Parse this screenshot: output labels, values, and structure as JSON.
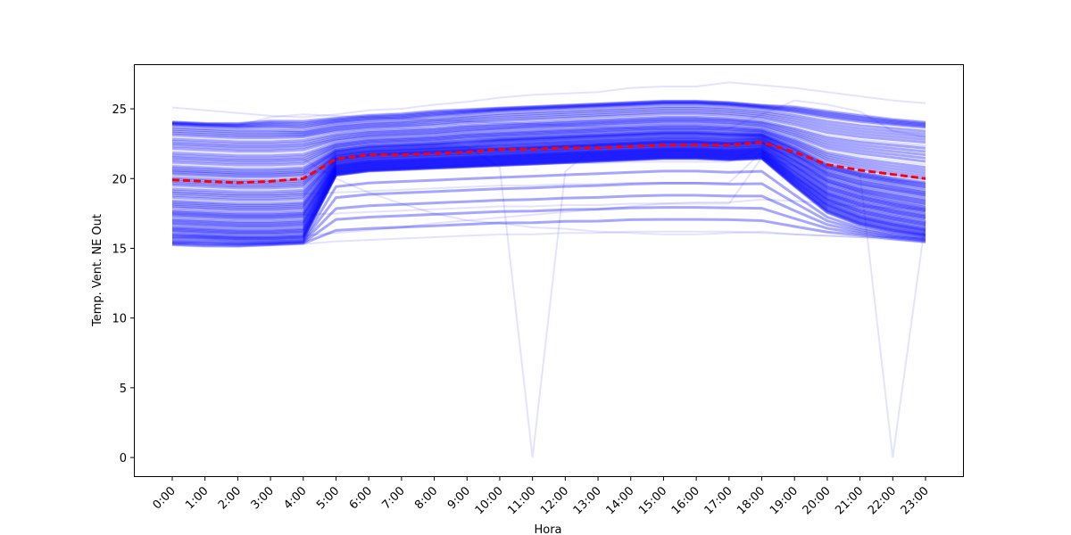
{
  "chart_data": {
    "type": "line",
    "title": "",
    "xlabel": "Hora",
    "ylabel": "Temp. Vent. NE Out",
    "categories": [
      "0:00",
      "1:00",
      "2:00",
      "3:00",
      "4:00",
      "5:00",
      "6:00",
      "7:00",
      "8:00",
      "9:00",
      "10:00",
      "11:00",
      "12:00",
      "13:00",
      "14:00",
      "15:00",
      "16:00",
      "17:00",
      "18:00",
      "19:00",
      "20:00",
      "21:00",
      "22:00",
      "23:00"
    ],
    "ylim": [
      -1.4,
      28.2
    ],
    "yticks": [
      0,
      5,
      10,
      15,
      20,
      25
    ],
    "grid": false,
    "legend": "none",
    "colors": {
      "daily_lines": "#0000ff",
      "mean_line": "#ff0000"
    },
    "daily_line_alpha": 0.1,
    "mean_series": {
      "style": "dashed",
      "values": [
        19.9,
        19.8,
        19.7,
        19.8,
        20.0,
        21.4,
        21.7,
        21.7,
        21.8,
        21.9,
        22.1,
        22.1,
        22.2,
        22.2,
        22.3,
        22.4,
        22.4,
        22.4,
        22.6,
        21.9,
        21.0,
        20.6,
        20.3,
        20.0
      ]
    },
    "daily_series": [
      {
        "values": [
          25.1,
          24.9,
          24.7,
          24.5,
          24.4,
          24.6,
          24.9,
          25.0,
          25.3,
          25.5,
          25.8,
          26.0,
          26.1,
          26.2,
          26.5,
          26.6,
          26.6,
          26.9,
          26.7,
          26.5,
          26.2,
          25.9,
          25.6,
          25.4
        ]
      },
      {
        "values": [
          24.1,
          24.0,
          24.0,
          24.2,
          24.2,
          24.4,
          24.6,
          24.7,
          24.9,
          25.0,
          25.1,
          25.2,
          25.3,
          25.4,
          25.5,
          25.6,
          25.6,
          25.5,
          25.3,
          25.2,
          24.9,
          24.6,
          24.3,
          24.1
        ]
      },
      {
        "values": [
          23.8,
          23.7,
          23.6,
          23.6,
          23.5,
          23.9,
          24.1,
          24.2,
          24.4,
          24.6,
          24.8,
          24.9,
          25.0,
          25.1,
          25.2,
          25.3,
          25.3,
          25.2,
          25.0,
          24.7,
          24.3,
          24.0,
          23.8,
          23.6
        ]
      },
      {
        "values": [
          23.0,
          22.9,
          22.8,
          22.8,
          22.9,
          23.3,
          23.5,
          23.6,
          23.7,
          23.9,
          24.0,
          24.1,
          24.2,
          24.3,
          24.4,
          24.5,
          24.5,
          24.4,
          24.2,
          23.7,
          23.1,
          22.8,
          22.6,
          22.4
        ]
      },
      {
        "values": [
          22.0,
          21.9,
          21.8,
          21.8,
          21.9,
          22.6,
          22.9,
          23.0,
          23.1,
          23.3,
          23.4,
          23.5,
          23.6,
          23.7,
          23.8,
          23.9,
          23.9,
          23.8,
          23.6,
          22.9,
          22.0,
          21.6,
          21.3,
          21.0
        ]
      },
      {
        "values": [
          21.0,
          20.9,
          20.8,
          20.8,
          20.9,
          22.1,
          22.4,
          22.5,
          22.6,
          22.8,
          22.9,
          23.0,
          23.1,
          23.2,
          23.3,
          23.4,
          23.4,
          23.3,
          23.2,
          22.3,
          21.1,
          20.5,
          20.1,
          19.8
        ]
      },
      {
        "values": [
          20.2,
          20.1,
          20.0,
          20.0,
          20.1,
          21.8,
          22.1,
          22.2,
          22.3,
          22.4,
          22.6,
          22.7,
          22.8,
          22.9,
          23.0,
          23.1,
          23.1,
          23.0,
          23.0,
          21.9,
          20.6,
          20.0,
          19.6,
          19.2
        ]
      },
      {
        "values": [
          19.4,
          19.3,
          19.2,
          19.2,
          19.3,
          21.5,
          21.8,
          21.9,
          22.0,
          22.1,
          22.2,
          22.3,
          22.4,
          22.5,
          22.6,
          22.7,
          22.7,
          22.6,
          22.7,
          21.5,
          20.1,
          19.4,
          19.0,
          18.6
        ]
      },
      {
        "values": [
          18.5,
          18.4,
          18.3,
          18.3,
          18.4,
          21.3,
          21.6,
          21.7,
          21.8,
          21.9,
          22.0,
          22.1,
          22.2,
          22.3,
          22.4,
          22.5,
          22.5,
          22.4,
          22.5,
          21.1,
          19.6,
          18.9,
          18.4,
          18.0
        ]
      },
      {
        "values": [
          17.8,
          17.7,
          17.6,
          17.6,
          17.7,
          21.0,
          21.3,
          21.4,
          21.5,
          21.6,
          21.7,
          21.8,
          21.9,
          22.0,
          22.1,
          22.2,
          22.2,
          22.1,
          22.2,
          20.7,
          19.1,
          18.4,
          17.9,
          17.5
        ]
      },
      {
        "values": [
          17.2,
          17.1,
          17.0,
          17.0,
          17.1,
          20.8,
          21.1,
          21.2,
          21.3,
          21.4,
          21.5,
          21.6,
          21.7,
          21.8,
          21.9,
          22.0,
          22.0,
          21.9,
          22.0,
          20.3,
          18.7,
          17.9,
          17.4,
          17.0
        ]
      },
      {
        "values": [
          16.6,
          16.5,
          16.4,
          16.4,
          16.5,
          20.6,
          20.9,
          21.0,
          21.1,
          21.2,
          21.3,
          21.4,
          21.5,
          21.6,
          21.7,
          21.8,
          21.8,
          21.7,
          21.8,
          20.0,
          18.3,
          17.4,
          16.9,
          16.5
        ]
      },
      {
        "values": [
          16.1,
          16.0,
          15.9,
          15.9,
          16.0,
          20.4,
          20.7,
          20.8,
          20.9,
          21.0,
          21.1,
          21.2,
          21.3,
          21.4,
          21.5,
          21.6,
          21.6,
          21.5,
          21.6,
          19.7,
          17.9,
          17.0,
          16.5,
          16.1
        ]
      },
      {
        "values": [
          15.6,
          15.6,
          15.5,
          15.5,
          15.6,
          20.2,
          20.5,
          20.6,
          20.7,
          20.8,
          20.9,
          21.0,
          21.1,
          21.2,
          21.3,
          21.4,
          21.4,
          21.3,
          21.4,
          19.4,
          17.5,
          16.6,
          16.1,
          15.8
        ]
      },
      {
        "values": [
          15.2,
          15.1,
          15.1,
          15.2,
          15.3,
          15.5,
          15.6,
          15.7,
          15.8,
          15.9,
          16.0,
          16.0,
          16.1,
          16.1,
          16.2,
          16.2,
          16.2,
          16.2,
          16.1,
          16.0,
          15.9,
          15.8,
          15.6,
          15.4
        ]
      },
      {
        "values": [
          17.5,
          17.4,
          17.3,
          17.3,
          17.4,
          17.5,
          17.6,
          17.7,
          17.8,
          17.9,
          18.0,
          18.0,
          18.1,
          18.1,
          18.2,
          18.2,
          18.2,
          18.2,
          21.5,
          20.9,
          19.8,
          19.0,
          18.4,
          18.0
        ]
      },
      {
        "values": [
          19.0,
          18.9,
          18.8,
          18.8,
          18.9,
          19.0,
          19.1,
          19.2,
          19.3,
          19.4,
          19.5,
          19.5,
          19.6,
          19.6,
          19.7,
          19.7,
          19.7,
          19.7,
          21.9,
          21.2,
          20.2,
          19.6,
          19.2,
          18.9
        ]
      },
      {
        "values": [
          20.5,
          20.4,
          20.3,
          20.3,
          20.4,
          20.5,
          20.6,
          20.7,
          20.8,
          20.9,
          21.0,
          21.0,
          21.1,
          21.1,
          21.2,
          21.2,
          21.2,
          21.2,
          22.3,
          21.6,
          20.7,
          20.2,
          19.9,
          19.7
        ]
      },
      {
        "values": [
          22.5,
          22.4,
          22.3,
          22.3,
          22.4,
          22.8,
          23.0,
          23.1,
          23.2,
          23.4,
          23.6,
          23.8,
          23.9,
          24.0,
          24.1,
          24.2,
          24.2,
          24.2,
          24.0,
          23.6,
          23.0,
          22.7,
          22.5,
          22.3
        ]
      },
      {
        "values": [
          20.6,
          20.5,
          20.4,
          20.4,
          20.5,
          21.8,
          22.0,
          22.1,
          22.2,
          22.3,
          20.8,
          0.0,
          20.5,
          22.5,
          22.6,
          22.7,
          22.7,
          22.6,
          22.8,
          21.8,
          20.9,
          20.4,
          20.1,
          19.9
        ]
      },
      {
        "values": [
          20.3,
          20.2,
          20.1,
          20.1,
          20.2,
          21.6,
          21.9,
          22.0,
          22.1,
          22.2,
          22.3,
          22.4,
          22.5,
          22.6,
          22.7,
          22.8,
          22.8,
          22.7,
          22.9,
          21.7,
          20.8,
          20.3,
          0.0,
          17.0
        ]
      },
      {
        "values": [
          21.5,
          21.4,
          21.3,
          21.3,
          21.4,
          20.0,
          19.0,
          18.2,
          17.5,
          17.0,
          16.8,
          16.5,
          16.4,
          16.2,
          16.1,
          16.0,
          16.0,
          16.1,
          16.2,
          16.0,
          15.9,
          15.8,
          15.8,
          15.7
        ]
      },
      {
        "values": [
          16.0,
          15.9,
          15.8,
          15.8,
          15.9,
          16.1,
          16.3,
          16.5,
          16.8,
          17.0,
          17.2,
          17.4,
          17.6,
          17.8,
          18.0,
          18.2,
          18.3,
          18.3,
          18.5,
          18.4,
          18.2,
          18.0,
          17.9,
          17.8
        ]
      },
      {
        "values": [
          24.0,
          23.9,
          23.8,
          24.4,
          24.6,
          24.5,
          24.4,
          24.3,
          24.2,
          24.1,
          24.0,
          23.9,
          23.8,
          23.7,
          23.6,
          23.5,
          23.5,
          23.6,
          24.6,
          25.6,
          25.3,
          24.8,
          23.4,
          23.0
        ]
      }
    ]
  }
}
